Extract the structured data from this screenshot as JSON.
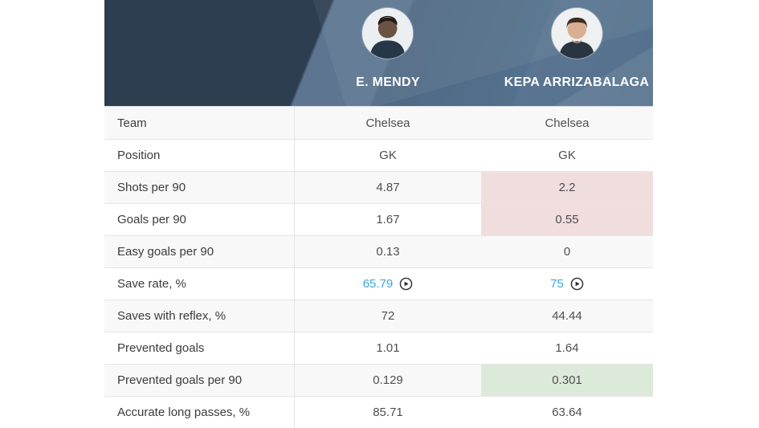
{
  "card": {
    "players": [
      {
        "name": "E. MENDY",
        "team": "Chelsea"
      },
      {
        "name": "KEPA ARRIZABALAGA",
        "team": "Chelsea"
      }
    ],
    "table": {
      "rows": [
        {
          "label": "Team",
          "values": [
            "Chelsea",
            "Chelsea"
          ],
          "highlight": [
            null,
            null
          ],
          "video": false
        },
        {
          "label": "Position",
          "values": [
            "GK",
            "GK"
          ],
          "highlight": [
            null,
            null
          ],
          "video": false
        },
        {
          "label": "Shots per 90",
          "values": [
            "4.87",
            "2.2"
          ],
          "highlight": [
            null,
            "negative"
          ],
          "video": false
        },
        {
          "label": "Goals per 90",
          "values": [
            "1.67",
            "0.55"
          ],
          "highlight": [
            null,
            "negative"
          ],
          "video": false
        },
        {
          "label": "Easy goals per 90",
          "values": [
            "0.13",
            "0"
          ],
          "highlight": [
            null,
            null
          ],
          "video": false
        },
        {
          "label": "Save rate, %",
          "values": [
            "65.79",
            "75"
          ],
          "highlight": [
            null,
            null
          ],
          "video": true
        },
        {
          "label": "Saves with reflex, %",
          "values": [
            "72",
            "44.44"
          ],
          "highlight": [
            null,
            null
          ],
          "video": false
        },
        {
          "label": "Prevented goals",
          "values": [
            "1.01",
            "1.64"
          ],
          "highlight": [
            null,
            null
          ],
          "video": false
        },
        {
          "label": "Prevented goals per 90",
          "values": [
            "0.129",
            "0.301"
          ],
          "highlight": [
            null,
            "positive"
          ],
          "video": false
        },
        {
          "label": "Accurate long passes, %",
          "values": [
            "85.71",
            "63.64"
          ],
          "highlight": [
            null,
            null
          ],
          "video": false
        }
      ]
    },
    "icons": {
      "play_video_icon": "right-pointing triangle inside circle outline"
    },
    "colors": {
      "header_navy": "#2d3e51",
      "header_slate": "#54708c",
      "negative_cell_bg": "#f0dddd",
      "positive_cell_bg": "#dcead9",
      "video_link_blue": "#3fa5da",
      "row_stripe": "#f8f8f9"
    }
  }
}
